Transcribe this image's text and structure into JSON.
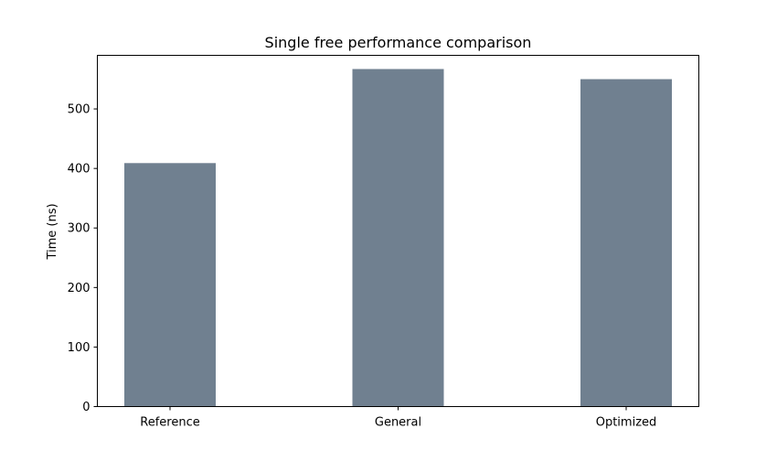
{
  "chart_data": {
    "type": "bar",
    "title": "Single free performance comparison",
    "xlabel": "",
    "ylabel": "Time (ns)",
    "categories": [
      "Reference",
      "General",
      "Optimized"
    ],
    "values": [
      409,
      567,
      550
    ],
    "ylim": [
      0,
      590
    ],
    "yticks": [
      0,
      100,
      200,
      300,
      400,
      500
    ],
    "grid": false,
    "legend": "none",
    "bar_color": "#708090"
  }
}
